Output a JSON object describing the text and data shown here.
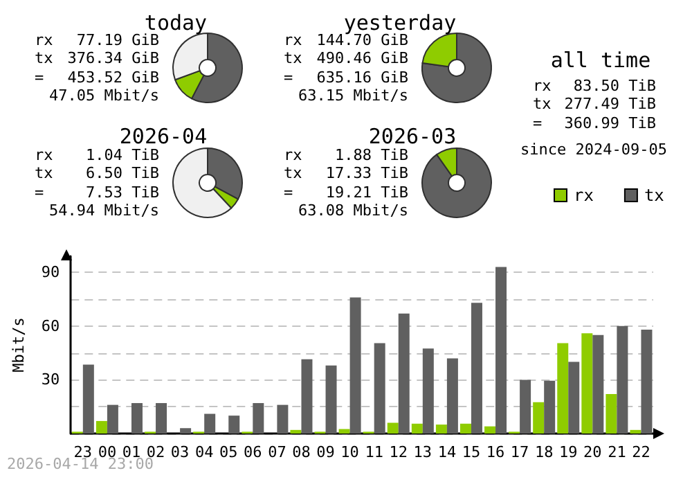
{
  "chart_data": [
    {
      "type": "donut",
      "title": "today",
      "categories": [
        null,
        null,
        null
      ],
      "values": [
        57.6,
        11.8,
        30.6
      ],
      "colors": [
        "#606060",
        "#8fcc00",
        "#f0f0f0"
      ],
      "annotations": [
        "rx",
        "77.19 GiB",
        "tx",
        "376.34 GiB",
        "=",
        "453.52 GiB",
        "47.05 Mbit/s"
      ]
    },
    {
      "type": "donut",
      "title": "yesterday",
      "categories": [
        null,
        null
      ],
      "values": [
        77.2,
        22.8
      ],
      "colors": [
        "#606060",
        "#8fcc00"
      ],
      "annotations": [
        "rx",
        "144.70 GiB",
        "tx",
        "490.46 GiB",
        "=",
        "635.16 GiB",
        "63.15 Mbit/s"
      ]
    },
    {
      "type": "other",
      "title": "all time",
      "annotations": [
        "rx",
        "83.50 TiB",
        "tx",
        "277.49 TiB",
        "=",
        "360.99 TiB",
        "since 2024-09-05"
      ]
    },
    {
      "type": "donut",
      "title": "2026-04",
      "categories": [
        null,
        null,
        null
      ],
      "values": [
        32.8,
        5.2,
        62.0
      ],
      "colors": [
        "#606060",
        "#8fcc00",
        "#f0f0f0"
      ],
      "annotations": [
        "rx",
        "1.04 TiB",
        "tx",
        "6.50 TiB",
        "=",
        "7.53 TiB",
        "54.94 Mbit/s"
      ]
    },
    {
      "type": "donut",
      "title": "2026-03",
      "categories": [
        null,
        null
      ],
      "values": [
        90.2,
        9.8
      ],
      "colors": [
        "#606060",
        "#8fcc00"
      ],
      "annotations": [
        "rx",
        "1.88 TiB",
        "tx",
        "17.33 TiB",
        "=",
        "19.21 TiB",
        "63.08 Mbit/s"
      ]
    },
    {
      "type": "bar",
      "ylabel": "Mbit/s",
      "categories": [
        "23",
        "00",
        "01",
        "02",
        "03",
        "04",
        "05",
        "06",
        "07",
        "08",
        "09",
        "10",
        "11",
        "12",
        "13",
        "14",
        "15",
        "16",
        "17",
        "18",
        "19",
        "20",
        "21",
        "22"
      ],
      "series": [
        {
          "name": "rx",
          "color": "#8fcc00",
          "values": [
            1,
            7,
            0,
            1,
            0,
            1,
            0,
            1,
            0,
            2,
            1,
            2.5,
            1,
            6,
            5.5,
            5,
            5.5,
            4,
            1,
            17.5,
            50.5,
            56,
            22,
            2
          ]
        },
        {
          "name": "tx",
          "color": "#606060",
          "values": [
            38.5,
            16,
            17,
            17,
            3,
            11,
            10,
            17,
            16,
            41.5,
            38,
            76,
            50.5,
            67,
            47.5,
            42,
            73,
            93,
            30,
            29.5,
            40,
            55,
            60,
            58
          ]
        }
      ],
      "ylim": [
        0,
        99
      ],
      "yticks": [
        {
          "value": 0,
          "label": null
        },
        {
          "value": 15,
          "label": null
        },
        30,
        {
          "value": 45,
          "label": null
        },
        60,
        {
          "value": 75,
          "label": null
        },
        90
      ],
      "grid": "y",
      "legend": "top right",
      "annotations": [
        "2026-04-14 23:00"
      ]
    }
  ]
}
